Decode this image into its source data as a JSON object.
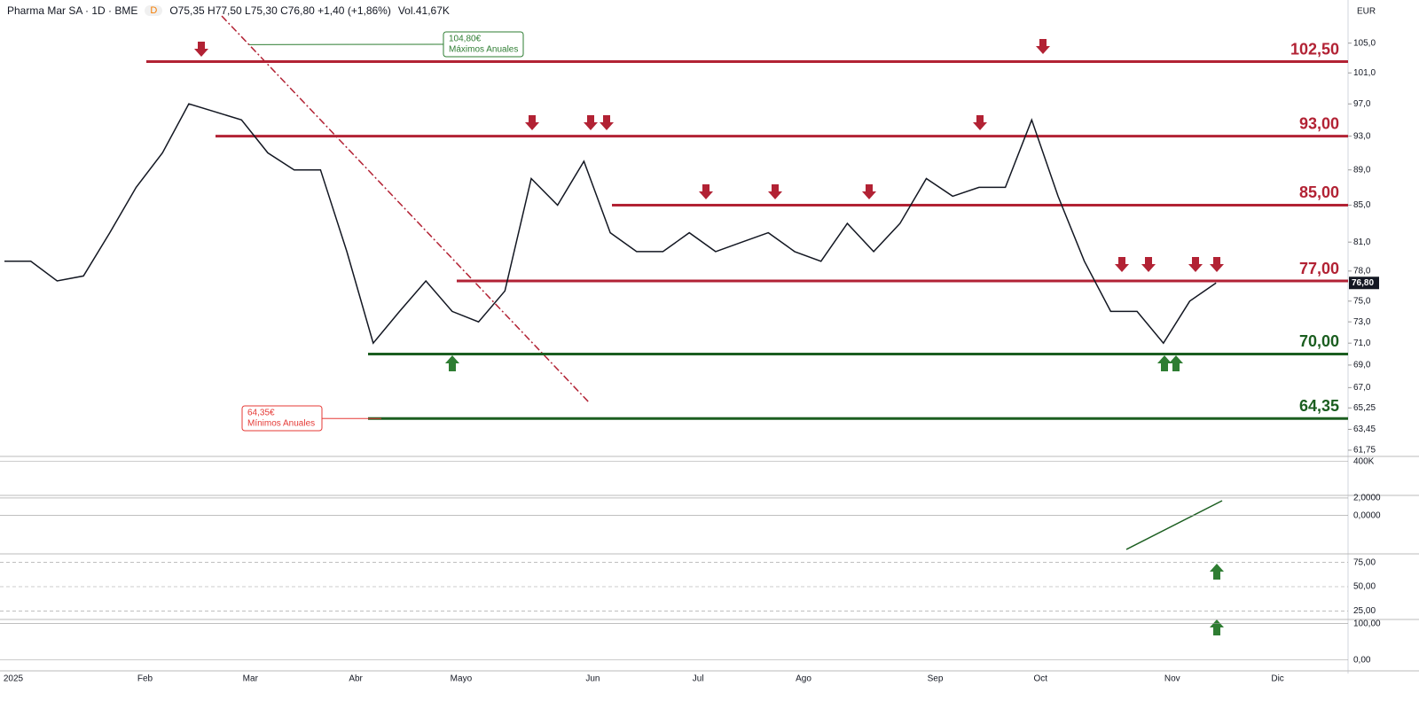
{
  "header": {
    "symbol": "Pharma Mar SA · 1D · BME",
    "badge": "D",
    "quote": "O75,35 H77,50 L75,30 C76,80 +1,40 (+1,86%)",
    "volume": "Vol.41,67K",
    "currency": "EUR"
  },
  "chart_data": {
    "type": "line",
    "log": true,
    "color": "#131722",
    "categories": [
      "2025",
      null,
      null,
      null,
      null,
      "Feb",
      null,
      null,
      null,
      "Mar",
      null,
      null,
      null,
      "Abr",
      null,
      null,
      null,
      "Mayo",
      null,
      null,
      null,
      null,
      "Jun",
      null,
      null,
      null,
      "Jul",
      null,
      null,
      null,
      "Ago",
      null,
      null,
      null,
      null,
      "Sep",
      null,
      null,
      null,
      "Oct",
      null,
      null,
      null,
      null,
      "Nov",
      null,
      null,
      null,
      "Dic"
    ],
    "values": [
      79,
      79,
      77,
      77.5,
      82,
      87,
      91,
      97,
      96,
      95,
      91,
      89,
      89,
      80,
      71,
      74,
      77,
      74,
      73,
      76,
      88,
      85,
      90,
      82,
      80,
      80,
      82,
      80,
      81,
      82,
      80,
      79,
      83,
      80,
      83,
      88,
      86,
      87,
      87,
      95,
      86,
      79,
      74,
      74,
      71,
      75,
      76.8,
      null,
      null
    ],
    "ylim": [
      61.25,
      109.8
    ],
    "yticks": [
      {
        "value": 105,
        "label": "105,0"
      },
      {
        "value": 101,
        "label": "101,0"
      },
      {
        "value": 97,
        "label": "97,0"
      },
      {
        "value": 93,
        "label": "93,0"
      },
      {
        "value": 89,
        "label": "89,0"
      },
      {
        "value": 85,
        "label": "85,0"
      },
      {
        "value": 81,
        "label": "81,0"
      },
      {
        "value": 78,
        "label": "78,0"
      },
      {
        "value": 75,
        "label": "75,0"
      },
      {
        "value": 73,
        "label": "73,0"
      },
      {
        "value": 71,
        "label": "71,0"
      },
      {
        "value": 69,
        "label": "69,0"
      },
      {
        "value": 67,
        "label": "67,0"
      },
      {
        "value": 65.25,
        "label": "65,25"
      },
      {
        "value": 63.45,
        "label": "63,45"
      },
      {
        "value": 61.75,
        "label": "61,75"
      }
    ],
    "levels": [
      {
        "value": 102.5,
        "label": "102,50",
        "color": "#b22234"
      },
      {
        "value": 93,
        "label": "93,00",
        "color": "#b22234"
      },
      {
        "value": 85,
        "label": "85,00",
        "color": "#b22234"
      },
      {
        "value": 77,
        "label": "77,00",
        "color": "#b22234"
      },
      {
        "value": 70,
        "label": "70,00",
        "color": "#1b5e20"
      },
      {
        "value": 64.35,
        "label": "64,35",
        "color": "#1b5e20"
      }
    ],
    "annotations": [
      {
        "value": 104.8,
        "label": "104,80€",
        "text": "Máximos Anuales",
        "color": "#2e7d32"
      },
      {
        "value": 64.35,
        "label": "64,35€",
        "text": "Mínimos Anuales",
        "color": "#e53935"
      }
    ],
    "last_price": {
      "value": 76.8,
      "label": "76,80"
    },
    "panes": [
      {
        "ylim": [
          0,
          440000
        ],
        "yticks": [
          {
            "value": 400000,
            "label": "400K"
          }
        ]
      },
      {
        "ylim": [
          -4.2,
          2.2
        ],
        "yticks": [
          {
            "value": 2,
            "label": "2,0000"
          },
          {
            "value": 0,
            "label": "0,0000"
          }
        ]
      },
      {
        "ylim": [
          18,
          82
        ],
        "yticks": [
          {
            "value": 75,
            "label": "75,00"
          },
          {
            "value": 50,
            "label": "50,00"
          },
          {
            "value": 25,
            "label": "25,00"
          }
        ]
      },
      {
        "ylim": [
          -25,
          109
        ],
        "yticks": [
          {
            "value": 100,
            "label": "100,00"
          },
          {
            "value": 0,
            "label": "0,00"
          }
        ]
      }
    ]
  }
}
